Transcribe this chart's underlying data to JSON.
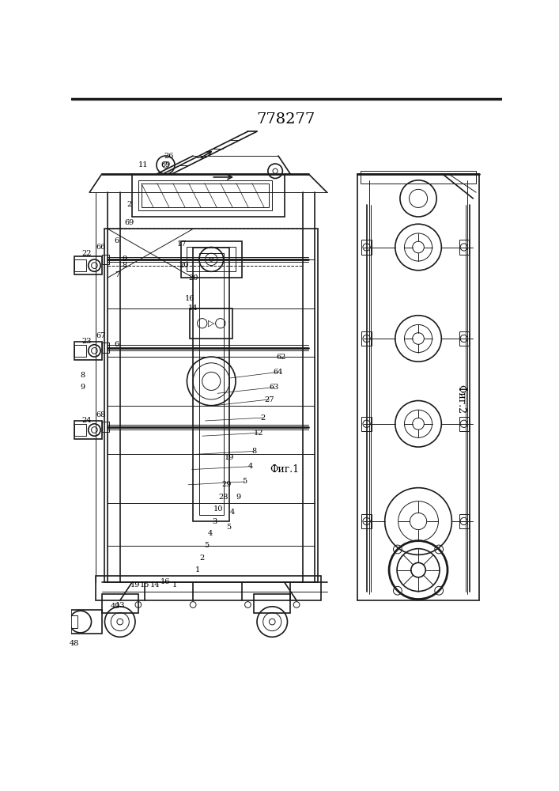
{
  "title": "778277",
  "title_fontsize": 14,
  "background_color": "#ffffff",
  "line_color": "#1a1a1a",
  "fig1_label": "Фиг.1",
  "fig2_label": "Фиг.2"
}
